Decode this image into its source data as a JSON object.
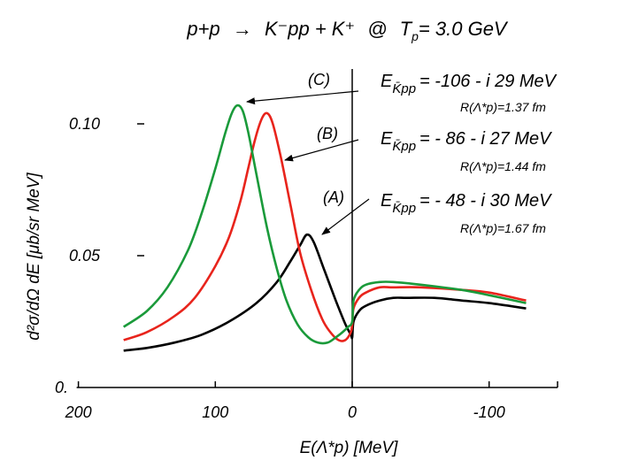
{
  "chart_data": {
    "type": "line",
    "title": "p+p → K⁻pp + K⁺ @ Tp= 3.0 GeV",
    "title_parts": {
      "reaction": "p+p",
      "arrow": "→",
      "products": "K⁻pp + K⁺",
      "at": "@",
      "t": "T",
      "t_sub": "p",
      "energy": "= 3.0 GeV"
    },
    "xlabel": "E(Λ*p)   [MeV]",
    "ylabel": "d²σ/dΩ dE   [μb/sr MeV]",
    "xlim": [
      200,
      -150
    ],
    "ylim": [
      0,
      0.115
    ],
    "x_reversed": true,
    "x_ticks": [
      {
        "value": 200,
        "label": "200"
      },
      {
        "value": 100,
        "label": "100"
      },
      {
        "value": 0,
        "label": "0"
      },
      {
        "value": -100,
        "label": "-100"
      }
    ],
    "y_ticks": [
      {
        "value": 0,
        "label": "0."
      },
      {
        "value": 0.05,
        "label": "0.05"
      },
      {
        "value": 0.1,
        "label": "0.10"
      }
    ],
    "grid": false,
    "series": [
      {
        "name": "(A)",
        "color": "#000000",
        "annotation": "E_K̄pp = - 48 - i 30 MeV",
        "radius": "R(Λ*p)=1.67 fm",
        "x": [
          167,
          150,
          130,
          110,
          90,
          70,
          55,
          45,
          38,
          33,
          28,
          20,
          12,
          5,
          1,
          0,
          -1,
          -5,
          -10,
          -20,
          -30,
          -40,
          -60,
          -80,
          -100,
          -127
        ],
        "y": [
          0.014,
          0.015,
          0.017,
          0.02,
          0.025,
          0.032,
          0.04,
          0.048,
          0.054,
          0.058,
          0.055,
          0.044,
          0.033,
          0.024,
          0.02,
          0.019,
          0.025,
          0.029,
          0.031,
          0.033,
          0.034,
          0.034,
          0.034,
          0.033,
          0.032,
          0.03
        ]
      },
      {
        "name": "(B)",
        "color": "#e8241c",
        "annotation": "E_K̄pp = - 86 - i 27 MeV",
        "radius": "R(Λ*p)=1.44 fm",
        "x": [
          167,
          150,
          130,
          115,
          100,
          90,
          82,
          76,
          71,
          66,
          62,
          58,
          52,
          45,
          38,
          30,
          22,
          16,
          10,
          5,
          1,
          0,
          -1,
          -5,
          -10,
          -20,
          -30,
          -50,
          -80,
          -100,
          -127
        ],
        "y": [
          0.018,
          0.021,
          0.027,
          0.034,
          0.046,
          0.057,
          0.07,
          0.083,
          0.094,
          0.102,
          0.104,
          0.1,
          0.087,
          0.069,
          0.051,
          0.037,
          0.026,
          0.021,
          0.018,
          0.018,
          0.021,
          0.024,
          0.03,
          0.034,
          0.036,
          0.038,
          0.038,
          0.038,
          0.037,
          0.036,
          0.033
        ]
      },
      {
        "name": "(C)",
        "color": "#1a9a3a",
        "annotation": "E_K̄pp = -106 - i 29 MeV",
        "radius": "R(Λ*p)=1.37 fm",
        "x": [
          167,
          150,
          135,
          120,
          110,
          100,
          93,
          88,
          84,
          80,
          76,
          70,
          62,
          55,
          48,
          40,
          32,
          25,
          18,
          12,
          7,
          3,
          0,
          -1,
          -5,
          -10,
          -20,
          -30,
          -50,
          -80,
          -100,
          -127
        ],
        "y": [
          0.023,
          0.029,
          0.038,
          0.052,
          0.066,
          0.083,
          0.096,
          0.104,
          0.107,
          0.105,
          0.097,
          0.081,
          0.06,
          0.045,
          0.033,
          0.024,
          0.019,
          0.017,
          0.017,
          0.019,
          0.021,
          0.023,
          0.025,
          0.033,
          0.037,
          0.039,
          0.04,
          0.04,
          0.039,
          0.037,
          0.035,
          0.032
        ]
      }
    ]
  }
}
